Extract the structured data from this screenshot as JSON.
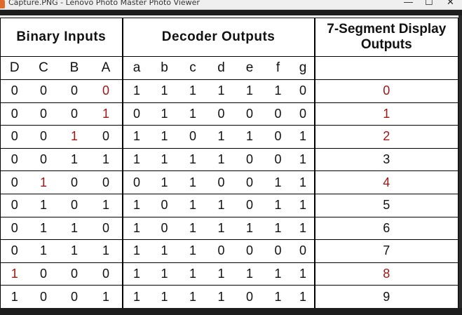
{
  "window": {
    "title": "Capture.PNG - Lenovo Photo Master Photo Viewer",
    "controls": {
      "minimize": "—",
      "maximize": "☐",
      "close": "✕"
    }
  },
  "table": {
    "group_headers": {
      "binary": "Binary Inputs",
      "decoder": "Decoder Outputs",
      "display": "7-Segment Display Outputs"
    },
    "binary_columns": [
      "D",
      "C",
      "B",
      "A"
    ],
    "decoder_columns": [
      "a",
      "b",
      "c",
      "d",
      "e",
      "f",
      "g"
    ],
    "rows": [
      {
        "D": "0",
        "C": "0",
        "B": "0",
        "A": "0",
        "a": "1",
        "b": "1",
        "c": "1",
        "d": "1",
        "e": "1",
        "f": "1",
        "g": "0",
        "out": "0"
      },
      {
        "D": "0",
        "C": "0",
        "B": "0",
        "A": "1",
        "a": "0",
        "b": "1",
        "c": "1",
        "d": "0",
        "e": "0",
        "f": "0",
        "g": "0",
        "out": "1"
      },
      {
        "D": "0",
        "C": "0",
        "B": "1",
        "A": "0",
        "a": "1",
        "b": "1",
        "c": "0",
        "d": "1",
        "e": "1",
        "f": "0",
        "g": "1",
        "out": "2"
      },
      {
        "D": "0",
        "C": "0",
        "B": "1",
        "A": "1",
        "a": "1",
        "b": "1",
        "c": "1",
        "d": "1",
        "e": "0",
        "f": "0",
        "g": "1",
        "out": "3"
      },
      {
        "D": "0",
        "C": "1",
        "B": "0",
        "A": "0",
        "a": "0",
        "b": "1",
        "c": "1",
        "d": "0",
        "e": "0",
        "f": "1",
        "g": "1",
        "out": "4"
      },
      {
        "D": "0",
        "C": "1",
        "B": "0",
        "A": "1",
        "a": "1",
        "b": "0",
        "c": "1",
        "d": "1",
        "e": "0",
        "f": "1",
        "g": "1",
        "out": "5"
      },
      {
        "D": "0",
        "C": "1",
        "B": "1",
        "A": "0",
        "a": "1",
        "b": "0",
        "c": "1",
        "d": "1",
        "e": "1",
        "f": "1",
        "g": "1",
        "out": "6"
      },
      {
        "D": "0",
        "C": "1",
        "B": "1",
        "A": "1",
        "a": "1",
        "b": "1",
        "c": "1",
        "d": "0",
        "e": "0",
        "f": "0",
        "g": "0",
        "out": "7"
      },
      {
        "D": "1",
        "C": "0",
        "B": "0",
        "A": "0",
        "a": "1",
        "b": "1",
        "c": "1",
        "d": "1",
        "e": "1",
        "f": "1",
        "g": "1",
        "out": "8"
      },
      {
        "D": "1",
        "C": "0",
        "B": "0",
        "A": "1",
        "a": "1",
        "b": "1",
        "c": "1",
        "d": "1",
        "e": "0",
        "f": "1",
        "g": "1",
        "out": "9"
      }
    ],
    "highlights": [
      [
        "A",
        "out"
      ],
      [
        "A",
        "out"
      ],
      [
        "B",
        "out"
      ],
      [],
      [
        "C",
        "out"
      ],
      [],
      [],
      [],
      [
        "D",
        "out"
      ],
      []
    ],
    "highlight_color": "#a31515"
  }
}
